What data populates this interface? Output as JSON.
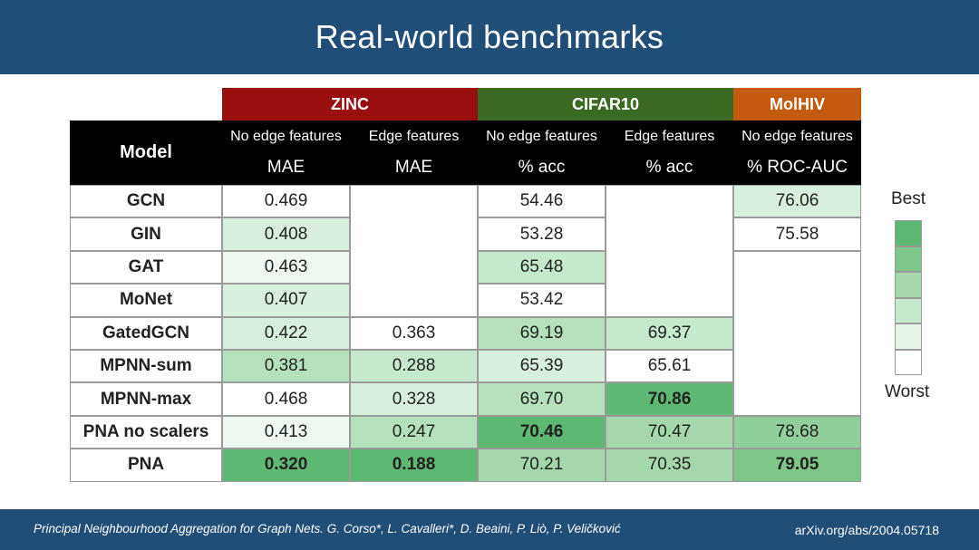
{
  "slide": {
    "title": "Real-world benchmarks"
  },
  "footer": {
    "citation": "Principal Neighbourhood Aggregation for Graph Nets. G. Corso*, L. Cavalleri*, D. Beaini, P. Liò, P. Veličković",
    "arxiv": "arXiv.org/abs/2004.05718"
  },
  "table": {
    "groups": [
      {
        "label": "ZINC",
        "color": "#9a0e0e"
      },
      {
        "label": "CIFAR10",
        "color": "#3b6a22"
      },
      {
        "label": "MolHIV",
        "color": "#c55a11"
      }
    ],
    "model_header": "Model",
    "columns": [
      {
        "sub": "No edge features",
        "unit": "MAE"
      },
      {
        "sub": "Edge features",
        "unit": "MAE"
      },
      {
        "sub": "No edge features",
        "unit": "% acc"
      },
      {
        "sub": "Edge features",
        "unit": "% acc"
      },
      {
        "sub": "No edge features",
        "unit": "% ROC-AUC"
      }
    ],
    "rows": [
      {
        "model": "GCN",
        "cells": [
          {
            "v": "0.469",
            "shade": 0
          },
          null,
          {
            "v": "54.46",
            "shade": 0
          },
          null,
          {
            "v": "76.06",
            "shade": 1
          }
        ]
      },
      {
        "model": "GIN",
        "cells": [
          {
            "v": "0.408",
            "shade": 1
          },
          null,
          {
            "v": "53.28",
            "shade": 0
          },
          null,
          {
            "v": "75.58",
            "shade": 0
          }
        ]
      },
      {
        "model": "GAT",
        "cells": [
          {
            "v": "0.463",
            "shade": 0.5
          },
          null,
          {
            "v": "65.48",
            "shade": 1.5
          },
          null,
          null
        ]
      },
      {
        "model": "MoNet",
        "cells": [
          {
            "v": "0.407",
            "shade": 1
          },
          null,
          {
            "v": "53.42",
            "shade": 0
          },
          null,
          null
        ]
      },
      {
        "model": "GatedGCN",
        "cells": [
          {
            "v": "0.422",
            "shade": 1
          },
          {
            "v": "0.363",
            "shade": 0
          },
          {
            "v": "69.19",
            "shade": 2
          },
          {
            "v": "69.37",
            "shade": 1.5
          },
          null
        ]
      },
      {
        "model": "MPNN-sum",
        "cells": [
          {
            "v": "0.381",
            "shade": 2
          },
          {
            "v": "0.288",
            "shade": 1.5
          },
          {
            "v": "65.39",
            "shade": 1
          },
          {
            "v": "65.61",
            "shade": 0
          },
          null
        ]
      },
      {
        "model": "MPNN-max",
        "cells": [
          {
            "v": "0.468",
            "shade": 0
          },
          {
            "v": "0.328",
            "shade": 1
          },
          {
            "v": "69.70",
            "shade": 2
          },
          {
            "v": "70.86",
            "shade": 4,
            "bold": true
          },
          null
        ]
      },
      {
        "model": "PNA no scalers",
        "cells": [
          {
            "v": "0.413",
            "shade": 0.5
          },
          {
            "v": "0.247",
            "shade": 2
          },
          {
            "v": "70.46",
            "shade": 4,
            "bold": true
          },
          {
            "v": "70.47",
            "shade": 2.5
          },
          {
            "v": "78.68",
            "shade": 3
          }
        ]
      },
      {
        "model": "PNA",
        "cells": [
          {
            "v": "0.320",
            "shade": 4,
            "bold": true
          },
          {
            "v": "0.188",
            "shade": 4,
            "bold": true
          },
          {
            "v": "70.21",
            "shade": 2.5
          },
          {
            "v": "70.35",
            "shade": 2.5
          },
          {
            "v": "79.05",
            "shade": 3.5,
            "bold": true
          }
        ]
      }
    ]
  },
  "legend": {
    "best": "Best",
    "worst": "Worst",
    "colors": [
      "#5cb872",
      "#7cc68a",
      "#a3d8ad",
      "#c6e8cc",
      "#e6f4e8",
      "#ffffff"
    ]
  }
}
